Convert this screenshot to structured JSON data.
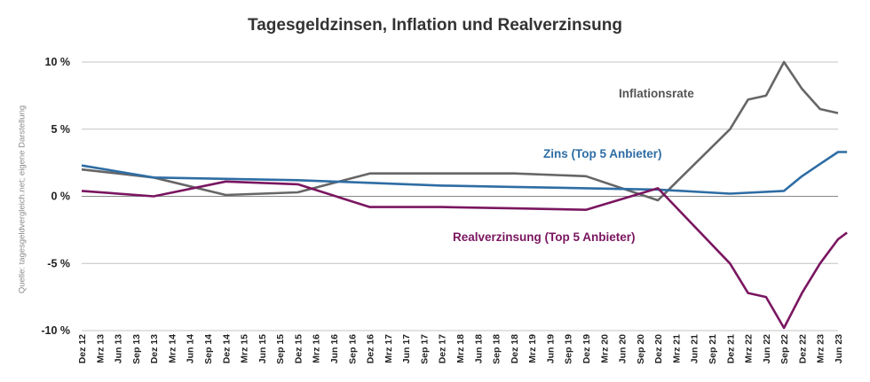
{
  "chart_data": {
    "type": "line",
    "title": "Tagesgeldzinsen, Inflation und Realverzinsung",
    "source": "Quelle: tagesgeldvergleich.net; eigene Darstellung",
    "ylim": [
      -10,
      10
    ],
    "yticks": [
      10,
      5,
      0,
      -5,
      -10
    ],
    "ytick_labels": [
      "10 %",
      "5 %",
      "0 %",
      "-5 %",
      "-10 %"
    ],
    "grid": true,
    "categories": [
      "Dez 12",
      "Mrz 13",
      "Jun 13",
      "Sep 13",
      "Dez 13",
      "Mrz 14",
      "Jun 14",
      "Sep 14",
      "Dez 14",
      "Mrz 15",
      "Jun 15",
      "Sep 15",
      "Dez 15",
      "Mrz 16",
      "Jun 16",
      "Sep 16",
      "Dez 16",
      "Mrz 17",
      "Jun 17",
      "Sep 17",
      "Dez 17",
      "Mrz 18",
      "Jun 18",
      "Sep 18",
      "Dez 18",
      "Mrz 19",
      "Jun 19",
      "Sep 19",
      "Dez 19",
      "Mrz 20",
      "Jun 20",
      "Sep 20",
      "Dez 20",
      "Mrz 21",
      "Jun 21",
      "Sep 21",
      "Dez 21",
      "Mrz 22",
      "Jun 22",
      "Sep 22",
      "Dez 22",
      "Mrz 23",
      "Jun 23"
    ],
    "series": [
      {
        "name": "Inflationsrate",
        "color": "#666666",
        "points": [
          [
            0,
            2.0
          ],
          [
            4,
            1.4
          ],
          [
            8,
            0.1
          ],
          [
            12,
            0.3
          ],
          [
            16,
            1.7
          ],
          [
            20,
            1.7
          ],
          [
            24,
            1.7
          ],
          [
            28,
            1.5
          ],
          [
            32,
            -0.3
          ],
          [
            36,
            5.0
          ],
          [
            37,
            7.2
          ],
          [
            38,
            7.5
          ],
          [
            39,
            10.0
          ],
          [
            40,
            8.0
          ],
          [
            41,
            6.5
          ],
          [
            42,
            6.2
          ]
        ]
      },
      {
        "name": "Zins (Top 5 Anbieter)",
        "color": "#2e6da4",
        "points": [
          [
            0,
            2.3
          ],
          [
            4,
            1.4
          ],
          [
            8,
            1.3
          ],
          [
            12,
            1.2
          ],
          [
            16,
            1.0
          ],
          [
            20,
            0.8
          ],
          [
            24,
            0.7
          ],
          [
            28,
            0.6
          ],
          [
            32,
            0.5
          ],
          [
            36,
            0.2
          ],
          [
            39,
            0.4
          ],
          [
            40,
            1.5
          ],
          [
            41,
            2.4
          ],
          [
            42,
            3.3
          ],
          [
            42.5,
            3.3
          ]
        ]
      },
      {
        "name": "Realverzinsung (Top 5 Anbieter)",
        "color": "#7a1660",
        "points": [
          [
            0,
            0.4
          ],
          [
            4,
            0.0
          ],
          [
            8,
            1.1
          ],
          [
            12,
            0.9
          ],
          [
            16,
            -0.8
          ],
          [
            20,
            -0.8
          ],
          [
            24,
            -0.9
          ],
          [
            28,
            -1.0
          ],
          [
            32,
            0.6
          ],
          [
            36,
            -5.0
          ],
          [
            37,
            -7.2
          ],
          [
            38,
            -7.5
          ],
          [
            39,
            -9.8
          ],
          [
            40,
            -7.2
          ],
          [
            41,
            -5.0
          ],
          [
            42,
            -3.2
          ],
          [
            42.5,
            -2.7
          ]
        ]
      }
    ]
  }
}
